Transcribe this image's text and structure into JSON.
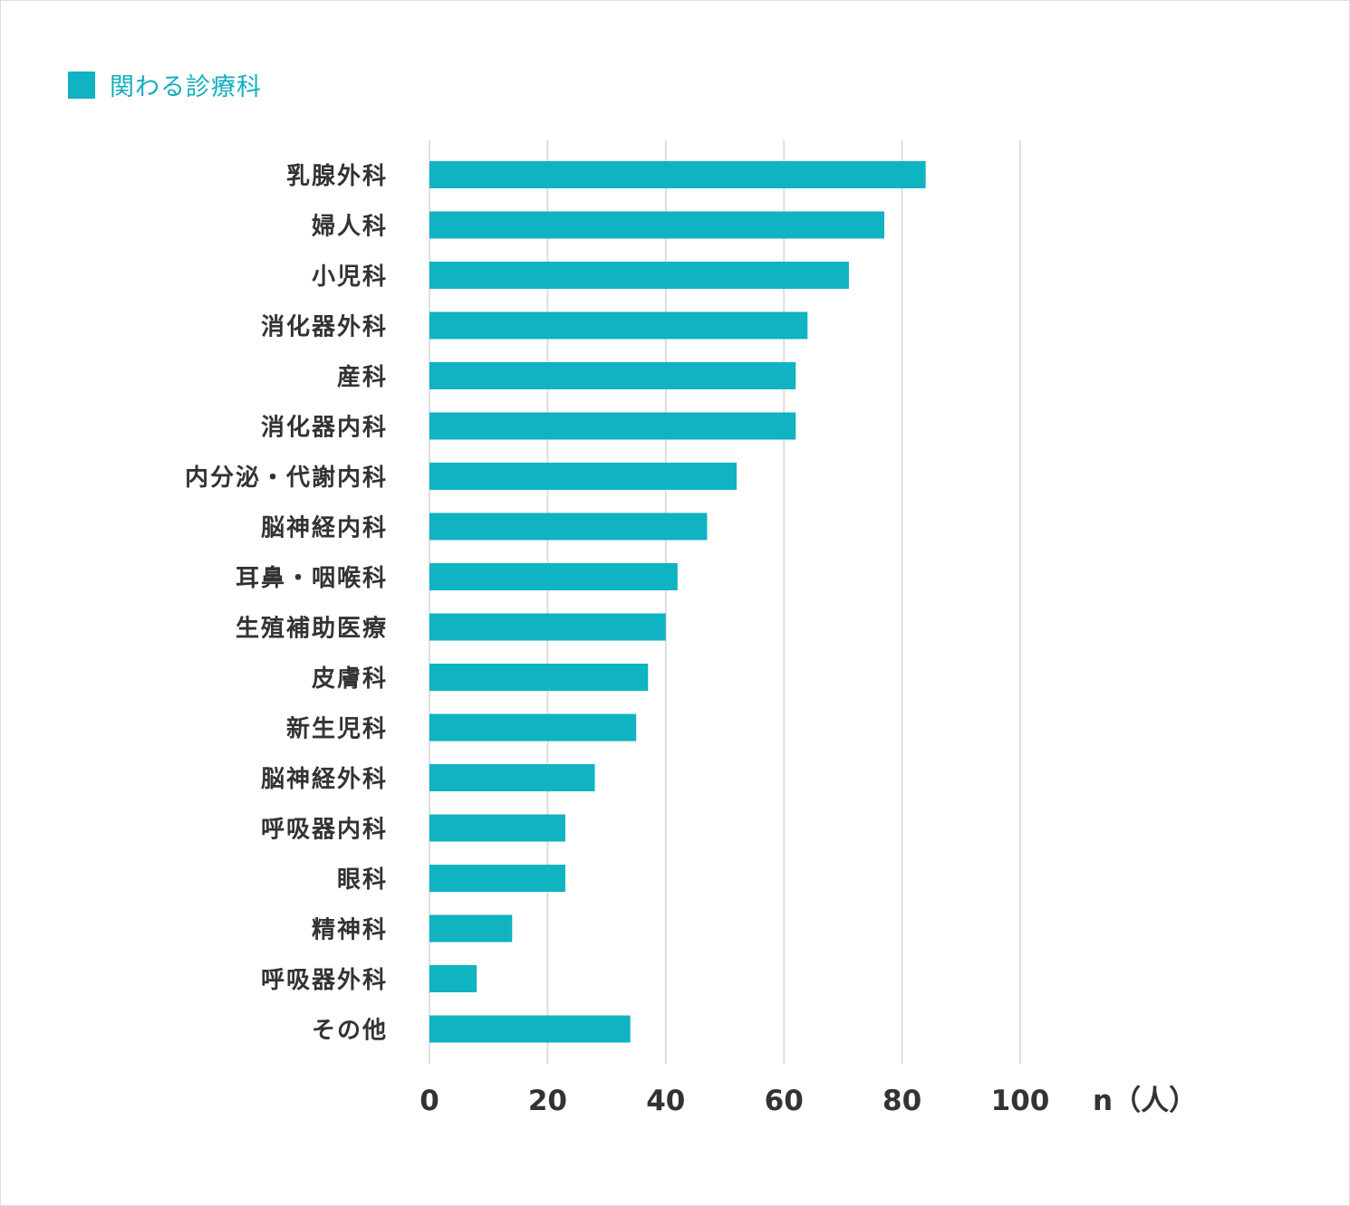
{
  "chart_data": {
    "type": "bar",
    "orientation": "horizontal",
    "title": "",
    "legend": [
      {
        "label": "関わる診療科",
        "color": "#0fb3c1"
      }
    ],
    "legend_position": "top-left",
    "categories": [
      "乳腺外科",
      "婦人科",
      "小児科",
      "消化器外科",
      "産科",
      "消化器内科",
      "内分泌・代謝内科",
      "脳神経内科",
      "耳鼻・咽喉科",
      "生殖補助医療",
      "皮膚科",
      "新生児科",
      "脳神経外科",
      "呼吸器内科",
      "眼科",
      "精神科",
      "呼吸器外科",
      "その他"
    ],
    "series": [
      {
        "name": "関わる診療科",
        "values": [
          84,
          77,
          71,
          64,
          62,
          62,
          52,
          47,
          42,
          40,
          37,
          35,
          28,
          23,
          23,
          14,
          8,
          34
        ]
      }
    ],
    "xlabel": "n（人）",
    "xlim": [
      0,
      100
    ],
    "xticks": [
      0,
      20,
      40,
      60,
      80,
      100
    ],
    "grid": true,
    "bar_color": "#0fb3c1"
  }
}
